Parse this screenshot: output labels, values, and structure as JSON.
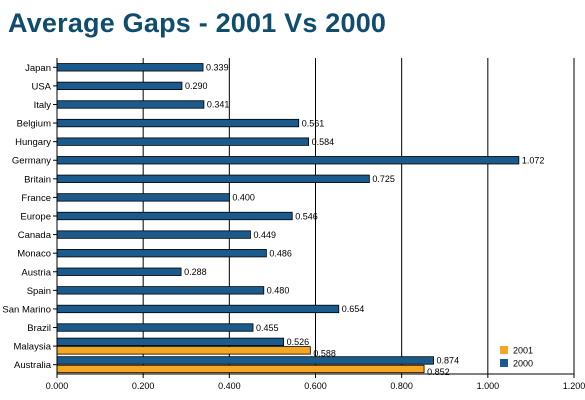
{
  "chart_data": {
    "type": "bar",
    "orientation": "horizontal",
    "title": "Average Gaps - 2001 Vs 2000",
    "title_color": "#0f4c6e",
    "categories": [
      "Japan",
      "USA",
      "Italy",
      "Belgium",
      "Hungary",
      "Germany",
      "Britain",
      "France",
      "Europe",
      "Canada",
      "Monaco",
      "Austria",
      "Spain",
      "San Marino",
      "Brazil",
      "Malaysia",
      "Australia"
    ],
    "series": [
      {
        "name": "2000",
        "color": "#1a5a8c",
        "values": [
          0.339,
          0.29,
          0.341,
          0.561,
          0.584,
          1.072,
          0.725,
          0.4,
          0.546,
          0.449,
          0.486,
          0.288,
          0.48,
          0.654,
          0.455,
          0.526,
          0.874
        ],
        "value_labels": [
          "0.339",
          "0.290",
          "0.341",
          "0.561",
          "0.584",
          "1.072",
          "0.725",
          "0.400",
          "0.546",
          "0.449",
          "0.486",
          "0.288",
          "0.480",
          "0.654",
          "0.455",
          "0.526",
          "0.874"
        ]
      },
      {
        "name": "2001",
        "color": "#f5a623",
        "values": [
          null,
          null,
          null,
          null,
          null,
          null,
          null,
          null,
          null,
          null,
          null,
          null,
          null,
          null,
          null,
          0.588,
          0.852
        ],
        "value_labels": [
          "",
          "",
          "",
          "",
          "",
          "",
          "",
          "",
          "",
          "",
          "",
          "",
          "",
          "",
          "",
          "0.588",
          "0.852"
        ]
      }
    ],
    "xlim": [
      0,
      1.2
    ],
    "x_ticks": [
      0.0,
      0.2,
      0.4,
      0.6,
      0.8,
      1.0,
      1.2
    ],
    "x_tick_labels": [
      "0.000",
      "0.200",
      "0.400",
      "0.600",
      "0.800",
      "1.000",
      "1.200"
    ],
    "grid": "vertical",
    "legend": {
      "placement": "bottom-right",
      "order": [
        "2001",
        "2000"
      ]
    }
  }
}
